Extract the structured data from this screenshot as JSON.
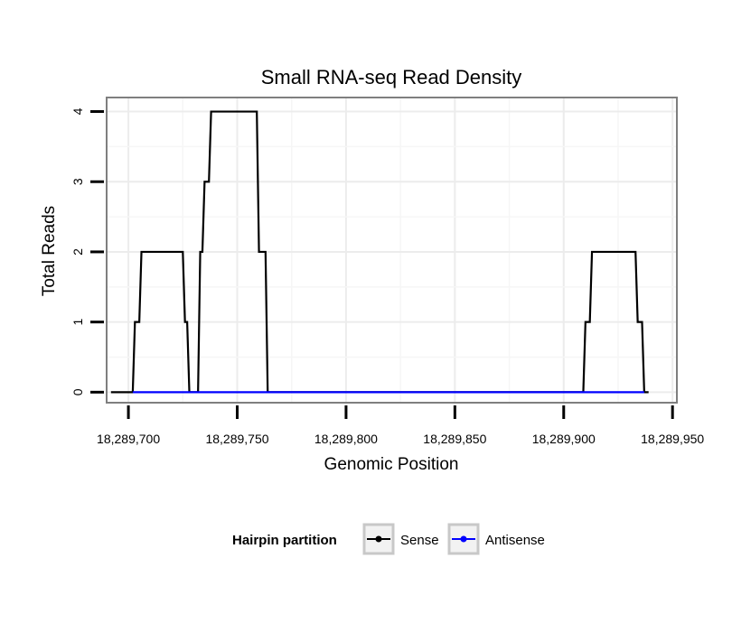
{
  "chart_data": {
    "type": "line",
    "title": "Small RNA-seq Read Density",
    "xlabel": "Genomic Position",
    "ylabel": "Total Reads",
    "xlim": [
      18289690,
      18289952
    ],
    "ylim": [
      -0.15,
      4.2
    ],
    "x_ticks": [
      18289700,
      18289750,
      18289800,
      18289850,
      18289900,
      18289950
    ],
    "x_tick_labels": [
      "18,289,700",
      "18,289,750",
      "18,289,800",
      "18,289,850",
      "18,289,900",
      "18,289,950"
    ],
    "y_ticks": [
      0,
      1,
      2,
      3,
      4
    ],
    "y_tick_labels": [
      "0",
      "1",
      "2",
      "3",
      "4"
    ],
    "grid": true,
    "legend": {
      "title": "Hairpin partition",
      "position": "bottom"
    },
    "series": [
      {
        "name": "Sense",
        "color": "#000000",
        "x": [
          18289692,
          18289702,
          18289703,
          18289704,
          18289705,
          18289706,
          18289725,
          18289726,
          18289727,
          18289728,
          18289731,
          18289732,
          18289733,
          18289734,
          18289735,
          18289736,
          18289737,
          18289738,
          18289739,
          18289740,
          18289758,
          18289759,
          18289760,
          18289761,
          18289762,
          18289763,
          18289764,
          18289909,
          18289910,
          18289911,
          18289912,
          18289913,
          18289914,
          18289933,
          18289934,
          18289935,
          18289936,
          18289937,
          18289939
        ],
        "y": [
          0,
          0,
          1,
          1,
          1,
          2,
          2,
          1,
          1,
          0,
          0,
          0,
          2,
          2,
          3,
          3,
          3,
          4,
          4,
          4,
          4,
          4,
          2,
          2,
          2,
          2,
          0,
          0,
          1,
          1,
          1,
          2,
          2,
          2,
          1,
          1,
          1,
          0,
          0
        ]
      },
      {
        "name": "Antisense",
        "color": "#0000ff",
        "x": [
          18289702,
          18289937
        ],
        "y": [
          0,
          0
        ]
      }
    ]
  }
}
